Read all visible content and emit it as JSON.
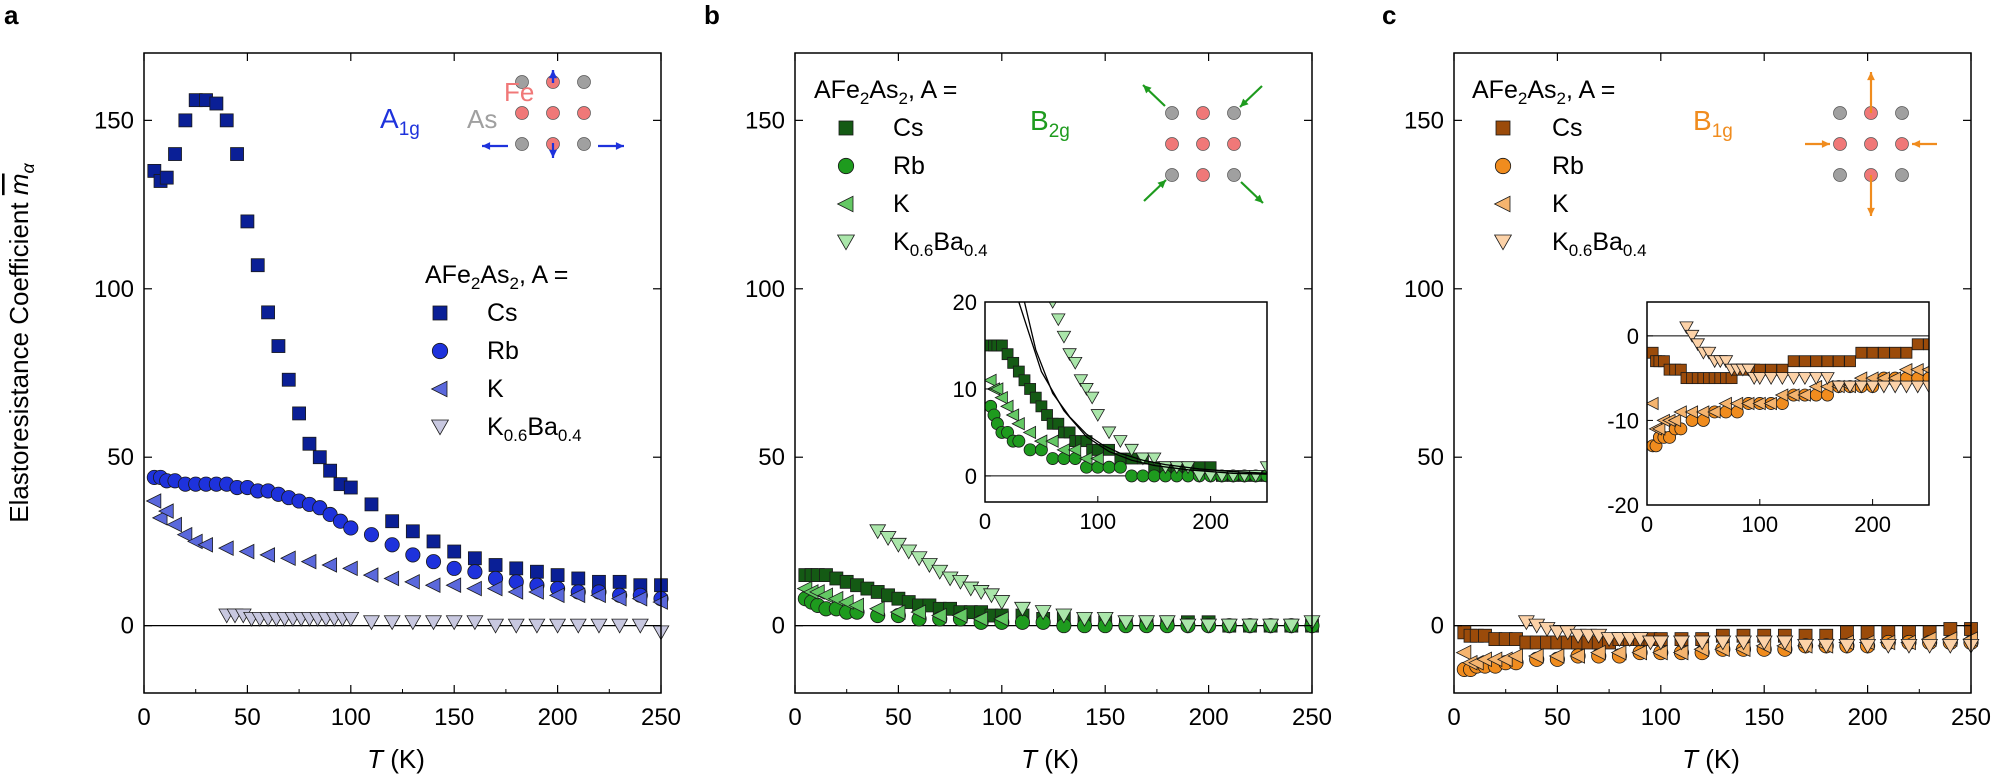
{
  "figure": {
    "ylabel": "Elastoresistance Coefficient",
    "ylabel_symbol": "m",
    "ylabel_sub": "α",
    "xlabel_symbol": "T",
    "xlabel_unit": " (K)"
  },
  "legend_base": {
    "prefix": "AFe",
    "sub1": "2",
    "mid": "As",
    "sub2": "2",
    "suffix": ", A ="
  },
  "colors": {
    "a": {
      "Cs": "#0a1f96",
      "Rb": "#1e32dc",
      "K": "#5a68dc",
      "K0.6Ba0.4": "#c8c8e0"
    },
    "b": {
      "Cs": "#145a14",
      "Rb": "#1e9b1e",
      "K": "#64c864",
      "K0.6Ba0.4": "#aae6aa"
    },
    "c": {
      "Cs": "#9b4b0a",
      "Rb": "#f08c1e",
      "K": "#f5b46e",
      "K0.6Ba0.4": "#fcd2a8"
    },
    "fe_atom": "#f07878",
    "as_atom": "#a0a0a0"
  },
  "schematic": {
    "fe_label": "Fe",
    "as_label": "As"
  },
  "chart_data": [
    {
      "panel": "a",
      "type": "scatter",
      "symmetry": "A",
      "symmetry_sub": "1g",
      "xlabel": "T (K)",
      "ylabel": "Elastoresistance Coefficient m_α",
      "xlim": [
        0,
        250
      ],
      "ylim": [
        -20,
        170
      ],
      "xticks": [
        0,
        50,
        100,
        150,
        200,
        250
      ],
      "yticks": [
        0,
        50,
        100,
        150
      ],
      "zero_line": true,
      "series": [
        {
          "name": "Cs",
          "marker": "square",
          "x": [
            5,
            8,
            11,
            15,
            20,
            25,
            30,
            35,
            40,
            45,
            50,
            55,
            60,
            65,
            70,
            75,
            80,
            85,
            90,
            95,
            100,
            110,
            120,
            130,
            140,
            150,
            160,
            170,
            180,
            190,
            200,
            210,
            220,
            230,
            240,
            250
          ],
          "y": [
            135,
            132,
            133,
            140,
            150,
            156,
            156,
            155,
            150,
            140,
            120,
            107,
            93,
            83,
            73,
            63,
            54,
            50,
            46,
            42,
            41,
            36,
            31,
            28,
            25,
            22,
            20,
            18,
            17,
            16,
            15,
            14,
            13,
            13,
            12,
            12
          ]
        },
        {
          "name": "Rb",
          "marker": "circle",
          "x": [
            5,
            8,
            11,
            15,
            20,
            25,
            30,
            35,
            40,
            45,
            50,
            55,
            60,
            65,
            70,
            75,
            80,
            85,
            90,
            95,
            100,
            110,
            120,
            130,
            140,
            150,
            160,
            170,
            180,
            190,
            200,
            210,
            220,
            230,
            240,
            250
          ],
          "y": [
            44,
            44,
            43,
            43,
            42,
            42,
            42,
            42,
            42,
            41,
            41,
            40,
            40,
            39,
            38,
            37,
            36,
            35,
            33,
            31,
            29,
            27,
            24,
            21,
            19,
            17,
            16,
            14,
            13,
            12,
            11,
            10,
            10,
            9,
            9,
            8
          ]
        },
        {
          "name": "K",
          "marker": "triangle-left",
          "x": [
            5,
            8,
            11,
            15,
            20,
            25,
            30,
            40,
            50,
            60,
            70,
            80,
            90,
            100,
            110,
            120,
            130,
            140,
            150,
            160,
            170,
            180,
            190,
            200,
            210,
            220,
            230,
            240,
            250
          ],
          "y": [
            37,
            32,
            34,
            30,
            27,
            25,
            24,
            23,
            22,
            21,
            20,
            19,
            18,
            17,
            15,
            14,
            13,
            12,
            12,
            11,
            11,
            10,
            10,
            9,
            9,
            9,
            8,
            8,
            7
          ]
        },
        {
          "name": "K0.6Ba0.4",
          "marker": "triangle-down",
          "x": [
            40,
            44,
            48,
            52,
            56,
            60,
            64,
            68,
            72,
            76,
            80,
            84,
            88,
            92,
            96,
            100,
            110,
            120,
            130,
            140,
            150,
            160,
            170,
            180,
            190,
            200,
            210,
            220,
            230,
            240,
            250
          ],
          "y": [
            3,
            3,
            3,
            2,
            2,
            2,
            2,
            2,
            2,
            2,
            2,
            2,
            2,
            2,
            2,
            2,
            1,
            1,
            1,
            1,
            1,
            1,
            0,
            0,
            0,
            0,
            0,
            0,
            0,
            0,
            -2
          ]
        }
      ],
      "legend": [
        "Cs",
        "Rb",
        "K",
        "K0.6Ba0.4"
      ]
    },
    {
      "panel": "b",
      "type": "scatter",
      "symmetry": "B",
      "symmetry_sub": "2g",
      "xlabel": "T (K)",
      "xlim": [
        0,
        250
      ],
      "ylim": [
        -20,
        170
      ],
      "xticks": [
        0,
        50,
        100,
        150,
        200,
        250
      ],
      "yticks": [
        0,
        50,
        100,
        150
      ],
      "zero_line": true,
      "series": [
        {
          "name": "Cs",
          "marker": "square",
          "x": [
            5,
            8,
            11,
            15,
            20,
            25,
            30,
            35,
            40,
            45,
            50,
            55,
            60,
            65,
            70,
            75,
            80,
            85,
            90,
            95,
            100,
            110,
            120,
            130,
            140,
            150,
            160,
            170,
            180,
            190,
            200,
            210,
            220,
            230,
            240,
            250
          ],
          "y": [
            15,
            15,
            15,
            15,
            14,
            13,
            12,
            11,
            10,
            9,
            8,
            7,
            6,
            6,
            5,
            5,
            4,
            4,
            4,
            3,
            3,
            3,
            2,
            2,
            2,
            1,
            1,
            1,
            1,
            1,
            1,
            0,
            0,
            0,
            0,
            0
          ]
        },
        {
          "name": "Rb",
          "marker": "circle",
          "x": [
            5,
            8,
            11,
            15,
            20,
            25,
            30,
            40,
            50,
            60,
            70,
            80,
            90,
            100,
            110,
            120,
            130,
            140,
            150,
            160,
            170,
            180,
            190,
            200,
            210,
            220,
            230,
            240,
            250
          ],
          "y": [
            8,
            7,
            6,
            5,
            5,
            4,
            4,
            3,
            3,
            2,
            2,
            2,
            1,
            1,
            1,
            1,
            0,
            0,
            0,
            0,
            0,
            0,
            0,
            0,
            0,
            0,
            0,
            0,
            0
          ]
        },
        {
          "name": "K",
          "marker": "triangle-left",
          "x": [
            5,
            8,
            11,
            15,
            20,
            25,
            30,
            40,
            50,
            60,
            70,
            80,
            90,
            100
          ],
          "y": [
            11,
            10,
            10,
            9,
            8,
            7,
            6,
            5,
            4,
            4,
            3,
            3,
            2,
            2
          ]
        },
        {
          "name": "K0.6Ba0.4",
          "marker": "triangle-down",
          "x": [
            40,
            45,
            50,
            55,
            60,
            65,
            70,
            75,
            80,
            85,
            90,
            95,
            100,
            110,
            120,
            130,
            140,
            150,
            160,
            170,
            180,
            190,
            200,
            210,
            220,
            230,
            240,
            250
          ],
          "y": [
            28,
            26,
            24,
            22,
            20,
            18,
            16,
            14,
            13,
            11,
            10,
            9,
            7,
            5,
            4,
            3,
            2,
            2,
            1,
            1,
            1,
            0,
            0,
            0,
            0,
            0,
            0,
            1
          ]
        }
      ],
      "legend": [
        "Cs",
        "Rb",
        "K",
        "K0.6Ba0.4"
      ],
      "inset": {
        "xlim": [
          0,
          250
        ],
        "ylim": [
          -3,
          20
        ],
        "xticks": [
          0,
          100,
          200
        ],
        "yticks": [
          0,
          10,
          20
        ],
        "zero_line": true,
        "fit_lines": [
          {
            "x": [
              30,
              50,
              70,
              90,
              110,
              130,
              150,
              180,
              220,
              250
            ],
            "y": [
              20,
              12,
              7.5,
              4.5,
              2.8,
              1.8,
              1.2,
              0.7,
              0.3,
              0.2
            ]
          },
          {
            "x": [
              35,
              45,
              60,
              75,
              90,
              105,
              120,
              140,
              160,
              190,
              220,
              250
            ],
            "y": [
              20,
              14.5,
              9.5,
              6.8,
              4.8,
              3.5,
              2.6,
              1.8,
              1.3,
              0.8,
              0.5,
              0.3
            ]
          }
        ]
      }
    },
    {
      "panel": "c",
      "type": "scatter",
      "symmetry": "B",
      "symmetry_sub": "1g",
      "xlabel": "T (K)",
      "xlim": [
        0,
        250
      ],
      "ylim": [
        -20,
        170
      ],
      "xticks": [
        0,
        50,
        100,
        150,
        200,
        250
      ],
      "yticks": [
        0,
        50,
        100,
        150
      ],
      "zero_line": true,
      "series": [
        {
          "name": "Cs",
          "marker": "square",
          "x": [
            5,
            8,
            11,
            15,
            20,
            25,
            30,
            35,
            40,
            45,
            50,
            55,
            60,
            65,
            70,
            75,
            80,
            85,
            90,
            95,
            100,
            110,
            120,
            130,
            140,
            150,
            160,
            170,
            180,
            190,
            200,
            210,
            220,
            230,
            240,
            250
          ],
          "y": [
            -2,
            -3,
            -3,
            -3,
            -4,
            -4,
            -4,
            -5,
            -5,
            -5,
            -5,
            -5,
            -5,
            -5,
            -5,
            -5,
            -4,
            -4,
            -4,
            -4,
            -4,
            -4,
            -4,
            -3,
            -3,
            -3,
            -3,
            -3,
            -3,
            -2,
            -2,
            -2,
            -2,
            -2,
            -1,
            -1
          ]
        },
        {
          "name": "Rb",
          "marker": "circle",
          "x": [
            5,
            8,
            11,
            15,
            20,
            25,
            30,
            40,
            50,
            60,
            70,
            80,
            90,
            100,
            110,
            120,
            130,
            140,
            150,
            160,
            170,
            180,
            190,
            200,
            210,
            220,
            230,
            240,
            250
          ],
          "y": [
            -13,
            -13,
            -12,
            -12,
            -12,
            -11,
            -11,
            -10,
            -10,
            -9,
            -9,
            -9,
            -8,
            -8,
            -8,
            -8,
            -7,
            -7,
            -7,
            -7,
            -6,
            -6,
            -6,
            -6,
            -5,
            -5,
            -5,
            -5,
            -5
          ]
        },
        {
          "name": "K",
          "marker": "triangle-left",
          "x": [
            5,
            8,
            11,
            15,
            20,
            25,
            30,
            40,
            50,
            60,
            70,
            80,
            90,
            100,
            110,
            120,
            130,
            140,
            150,
            160,
            170,
            180,
            190,
            200,
            210,
            220,
            230,
            240,
            250
          ],
          "y": [
            -8,
            -11,
            -11,
            -10,
            -10,
            -10,
            -9,
            -9,
            -9,
            -9,
            -8,
            -8,
            -8,
            -8,
            -8,
            -7,
            -7,
            -7,
            -6,
            -6,
            -6,
            -6,
            -5,
            -5,
            -5,
            -5,
            -4,
            -4,
            -4
          ]
        },
        {
          "name": "K0.6Ba0.4",
          "marker": "triangle-down",
          "x": [
            35,
            40,
            45,
            50,
            55,
            60,
            65,
            70,
            75,
            80,
            85,
            90,
            95,
            100,
            110,
            120,
            130,
            140,
            150,
            160,
            170,
            180,
            190,
            200,
            210,
            220,
            230,
            240,
            250
          ],
          "y": [
            1,
            0,
            -1,
            -2,
            -2,
            -3,
            -3,
            -3,
            -4,
            -4,
            -4,
            -4,
            -5,
            -5,
            -5,
            -5,
            -5,
            -5,
            -5,
            -5,
            -6,
            -6,
            -6,
            -6,
            -6,
            -6,
            -6,
            -6,
            -6
          ]
        }
      ],
      "legend": [
        "Cs",
        "Rb",
        "K",
        "K0.6Ba0.4"
      ],
      "inset": {
        "xlim": [
          0,
          250
        ],
        "ylim": [
          -20,
          4
        ],
        "xticks": [
          0,
          100,
          200
        ],
        "yticks": [
          0,
          -10,
          -20
        ],
        "zero_line": true
      }
    }
  ]
}
